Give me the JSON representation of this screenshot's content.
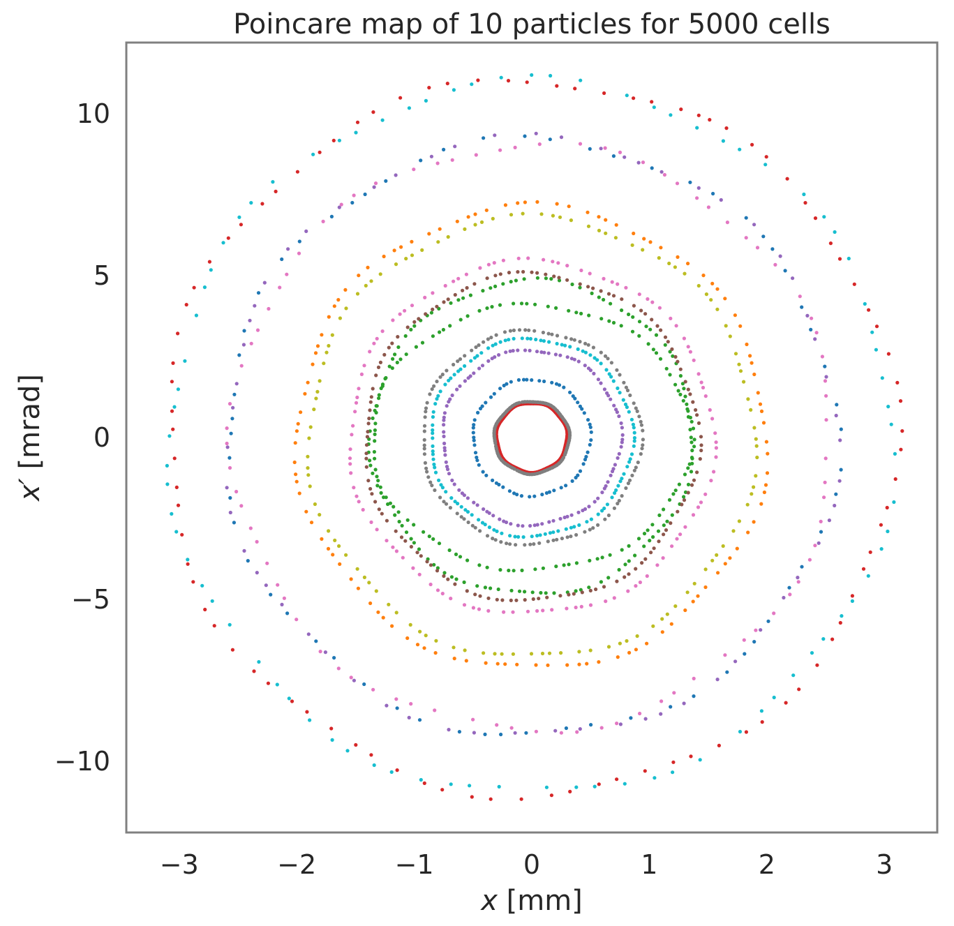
{
  "chart_data": {
    "type": "scatter",
    "title": "Poincare map of 10 particles for 5000 cells",
    "xlabel": "x [mm]",
    "ylabel": "x′ [mrad]",
    "xlim": [
      -3.45,
      3.45
    ],
    "ylim": [
      -12.2,
      12.2
    ],
    "xticks": [
      -3,
      -2,
      -1,
      0,
      1,
      2,
      3
    ],
    "xtick_labels": [
      "−3",
      "−2",
      "−1",
      "0",
      "1",
      "2",
      "3"
    ],
    "yticks": [
      -10,
      -5,
      0,
      5,
      10
    ],
    "ytick_labels": [
      "−10",
      "−5",
      "0",
      "5",
      "10"
    ],
    "grid": false,
    "legend": "none",
    "frame_color": "#808080",
    "series": [
      {
        "color": "#d62728",
        "a": 0.3,
        "b": 1.07,
        "a2": 3.1,
        "b2": 11.05,
        "n": 300,
        "n2": 90
      },
      {
        "color": "#7f7f7f",
        "a": 0.32,
        "b": 1.12,
        "a2": 0.93,
        "b2": 3.3,
        "n": 140,
        "n2": 120
      },
      {
        "color": "#1f77b4",
        "a": 0.5,
        "b": 1.8,
        "a2": 2.6,
        "b2": 9.2,
        "n": 70,
        "n2": 60
      },
      {
        "color": "#9467bd",
        "a": 0.76,
        "b": 2.7,
        "a2": 2.6,
        "b2": 9.25,
        "n": 110,
        "n2": 60
      },
      {
        "color": "#17becf",
        "a": 0.86,
        "b": 3.05,
        "a2": 3.08,
        "b2": 11.0,
        "n": 120,
        "n2": 80
      },
      {
        "color": "#2ca02c",
        "a": 1.36,
        "b": 4.1,
        "a2": 1.37,
        "b2": 4.85,
        "n": 110,
        "n2": 120
      },
      {
        "color": "#8c564b",
        "a": 1.42,
        "b": 5.05,
        "n": 130
      },
      {
        "color": "#e377c2",
        "a": 1.55,
        "b": 5.45,
        "a2": 2.55,
        "b2": 9.05,
        "n": 110,
        "n2": 80
      },
      {
        "color": "#bcbd22",
        "a": 1.9,
        "b": 6.8,
        "n": 110
      },
      {
        "color": "#ff7f0e",
        "a": 2.0,
        "b": 7.15,
        "n": 110
      }
    ]
  }
}
